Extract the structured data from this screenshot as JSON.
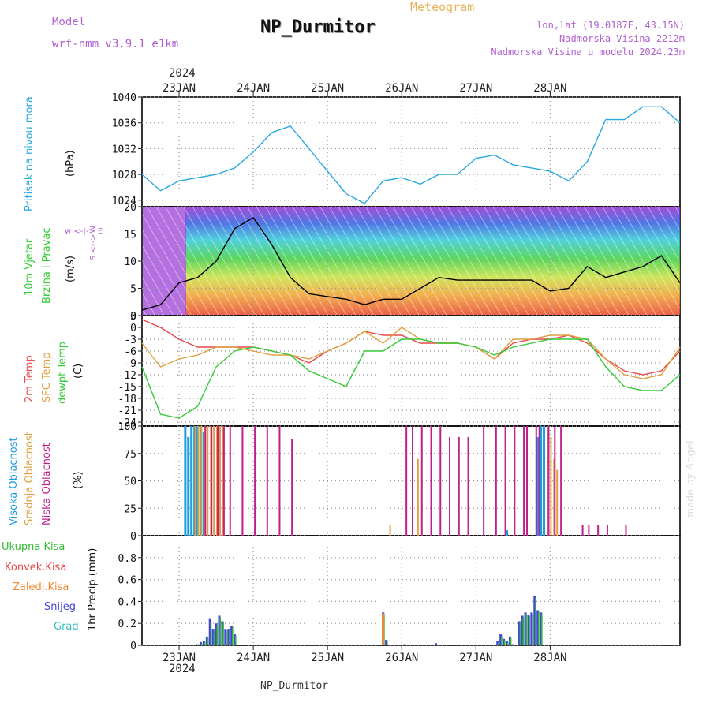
{
  "header": {
    "model_label": "Model",
    "model_name": "wrf-nmm_v3.9.1 e1km",
    "title": "NP_Durmitor",
    "subtitle": "Meteogram",
    "location": "lon,lat (19.0187E, 43.15N)",
    "elevation": "Nadmorska Visina 2212m",
    "model_elevation": "Nadmorska Visina u modelu 2024.23m"
  },
  "footer": {
    "station": "NP_Durmitor",
    "watermark": "made by Angel"
  },
  "time_axis": {
    "year": "2024",
    "day_labels": [
      "23JAN",
      "24JAN",
      "25JAN",
      "26JAN",
      "27JAN",
      "28JAN"
    ]
  },
  "panel_labels": {
    "pressure": {
      "name": "Pritisak na nivou mora",
      "unit": "(hPa)"
    },
    "wind": {
      "line1": "10m Vjetar",
      "line2": "Brzina i Pravac",
      "unit": "(m/s)",
      "compass": "w <-|-> E",
      "compass_v": "S <--> N"
    },
    "temperature": {
      "t2m": "2m Temp",
      "sfc": "SFC Temp",
      "dewpt": "dewpt Temp",
      "unit": "(C)"
    },
    "cloud": {
      "high": "Visoka Oblacnost",
      "mid": "Srednja Oblacnost",
      "low": "Niska Oblacnost",
      "unit": "(%)"
    },
    "precip": {
      "total": "Ukupna Kisa",
      "conv": "Konvek.Kisa",
      "freezing": "Zaledj.Kisa",
      "snow": "Snijeg",
      "graupel": "Grad",
      "unit": "1hr Precip (mm)"
    }
  },
  "colors": {
    "pressure": "#29a8e0",
    "t2m": "#e84848",
    "sfc": "#e0a040",
    "dewpt": "#33cc33",
    "high": "#1f9be0",
    "mid": "#e0a040",
    "low": "#c0208a",
    "total": "#33bb33",
    "conv": "#e84848",
    "freezing": "#f08a30",
    "snow": "#4444dd",
    "graupel": "#33bbbb"
  },
  "chart_data": [
    {
      "type": "line",
      "name": "pressure",
      "title": "",
      "ylabel": "Pritisak na nivou mora (hPa)",
      "x_hours": [
        0,
        6,
        12,
        18,
        24,
        30,
        36,
        42,
        48,
        54,
        60,
        66,
        72,
        78,
        84,
        90,
        96,
        102,
        108,
        114,
        120,
        126,
        132,
        138,
        144,
        150,
        156,
        162,
        168,
        174
      ],
      "values": [
        1028,
        1025.5,
        1027,
        1027.5,
        1028,
        1029,
        1031.5,
        1034.5,
        1035.5,
        1032,
        1028.5,
        1025,
        1023.5,
        1027,
        1027.5,
        1026.5,
        1028,
        1028,
        1030.5,
        1031,
        1029.5,
        1029,
        1028.5,
        1027,
        1030,
        1036.5,
        1036.5,
        1038.5,
        1038.5,
        1036
      ],
      "ylim": [
        1023,
        1040
      ],
      "yticks": [
        1024,
        1028,
        1032,
        1036,
        1040
      ],
      "grid": true
    },
    {
      "type": "line",
      "name": "wind_speed",
      "ylabel": "10m Vjetar Brzina i Pravac (m/s)",
      "x_hours": [
        0,
        6,
        12,
        18,
        24,
        30,
        36,
        42,
        48,
        54,
        60,
        66,
        72,
        78,
        84,
        90,
        96,
        102,
        108,
        114,
        120,
        126,
        132,
        138,
        144,
        150,
        156,
        162,
        168,
        174
      ],
      "values": [
        1,
        2,
        6,
        7,
        10,
        16,
        18,
        13,
        7,
        4,
        3.5,
        3,
        2,
        3,
        3,
        5,
        7,
        6.5,
        6.5,
        6.5,
        6.5,
        6.5,
        4.5,
        5,
        9,
        7,
        8,
        9,
        11,
        6
      ],
      "ylim": [
        0,
        20
      ],
      "yticks": [
        0,
        5,
        10,
        15,
        20
      ],
      "grid": true
    },
    {
      "type": "line",
      "name": "temperature",
      "ylabel": "(C)",
      "x_hours": [
        0,
        6,
        12,
        18,
        24,
        30,
        36,
        42,
        48,
        54,
        60,
        66,
        72,
        78,
        84,
        90,
        96,
        102,
        108,
        114,
        120,
        126,
        132,
        138,
        144,
        150,
        156,
        162,
        168,
        174
      ],
      "series": [
        {
          "name": "2m Temp",
          "values": [
            2,
            0,
            -3,
            -5,
            -5,
            -5,
            -5,
            -6,
            -7,
            -9,
            -6,
            -4,
            -1,
            -2,
            -2,
            -4,
            -4,
            -4,
            -5,
            -8,
            -4,
            -3,
            -3,
            -2,
            -4,
            -8,
            -11,
            -12,
            -11,
            -6
          ]
        },
        {
          "name": "SFC Temp",
          "values": [
            -4,
            -10,
            -8,
            -7,
            -5,
            -5,
            -6,
            -7,
            -7,
            -8,
            -6,
            -4,
            -1,
            -4,
            0,
            -3,
            -4,
            -4,
            -5,
            -8,
            -3,
            -3,
            -2,
            -2,
            -3,
            -8,
            -12,
            -13,
            -12,
            -5
          ]
        },
        {
          "name": "dewpt Temp",
          "values": [
            -10,
            -22,
            -23,
            -20,
            -10,
            -6,
            -5,
            -6,
            -7,
            -11,
            -13,
            -15,
            -6,
            -6,
            -3,
            -3,
            -4,
            -4,
            -5,
            -7,
            -5,
            -4,
            -3,
            -3,
            -3,
            -10,
            -15,
            -16,
            -16,
            -12
          ]
        }
      ],
      "ylim": [
        -25,
        3
      ],
      "yticks": [
        3,
        0,
        -3,
        -6,
        -9,
        -12,
        -15,
        -18,
        -21,
        -24
      ],
      "grid": true
    },
    {
      "type": "bar",
      "name": "cloud_cover",
      "ylabel": "(%)",
      "series": [
        {
          "name": "Visoka Oblacnost",
          "x_hours": [
            14,
            15,
            16,
            17,
            18,
            19,
            20,
            118,
            128,
            129,
            130
          ],
          "values": [
            100,
            90,
            100,
            100,
            100,
            100,
            95,
            5,
            90,
            100,
            100
          ]
        },
        {
          "name": "Srednja Oblacnost",
          "x_hours": [
            17,
            18,
            19,
            20,
            21,
            22,
            23,
            24,
            25,
            26,
            80,
            89,
            131,
            132,
            133,
            134
          ],
          "values": [
            100,
            100,
            100,
            100,
            100,
            100,
            100,
            100,
            100,
            100,
            10,
            70,
            100,
            90,
            70,
            60
          ]
        },
        {
          "name": "Niska Oblacnost",
          "x_hours": [
            20,
            22,
            24,
            26,
            28,
            32,
            36,
            40,
            44,
            48,
            85,
            87,
            90,
            93,
            96,
            99,
            102,
            105,
            110,
            114,
            117,
            120,
            123,
            124,
            127,
            128,
            131,
            133,
            135,
            142,
            144,
            147,
            150,
            156
          ],
          "values": [
            100,
            100,
            100,
            100,
            100,
            100,
            100,
            100,
            100,
            88,
            100,
            100,
            100,
            100,
            100,
            90,
            90,
            90,
            100,
            100,
            100,
            100,
            100,
            100,
            100,
            100,
            100,
            100,
            100,
            10,
            10,
            10,
            10,
            10
          ]
        }
      ],
      "ylim": [
        0,
        100
      ],
      "yticks": [
        0,
        25,
        50,
        75,
        100
      ],
      "grid": true
    },
    {
      "type": "bar",
      "name": "precip_1hr",
      "ylabel": "1hr Precip (mm)",
      "series": [
        {
          "name": "Ukupna Kisa",
          "x_hours": [
            18,
            19,
            20,
            21,
            22,
            23,
            24,
            25,
            26,
            27,
            28,
            29,
            30,
            78,
            79,
            85,
            95,
            115,
            116,
            117,
            118,
            119,
            120,
            122,
            123,
            124,
            125,
            126,
            127,
            128,
            129
          ],
          "values": [
            0.01,
            0.03,
            0.04,
            0.08,
            0.24,
            0.15,
            0.2,
            0.27,
            0.22,
            0.15,
            0.15,
            0.18,
            0.1,
            0.3,
            0.05,
            0.01,
            0.02,
            0.04,
            0.1,
            0.06,
            0.04,
            0.08,
            0.01,
            0.22,
            0.27,
            0.3,
            0.28,
            0.3,
            0.45,
            0.32,
            0.3
          ]
        },
        {
          "name": "Zaledj.Kisa",
          "x_hours": [
            78
          ],
          "values": [
            0.29
          ]
        }
      ],
      "ylim": [
        0,
        1.0
      ],
      "yticks": [
        0,
        0.2,
        0.4,
        0.6,
        0.8
      ],
      "grid": true
    }
  ]
}
